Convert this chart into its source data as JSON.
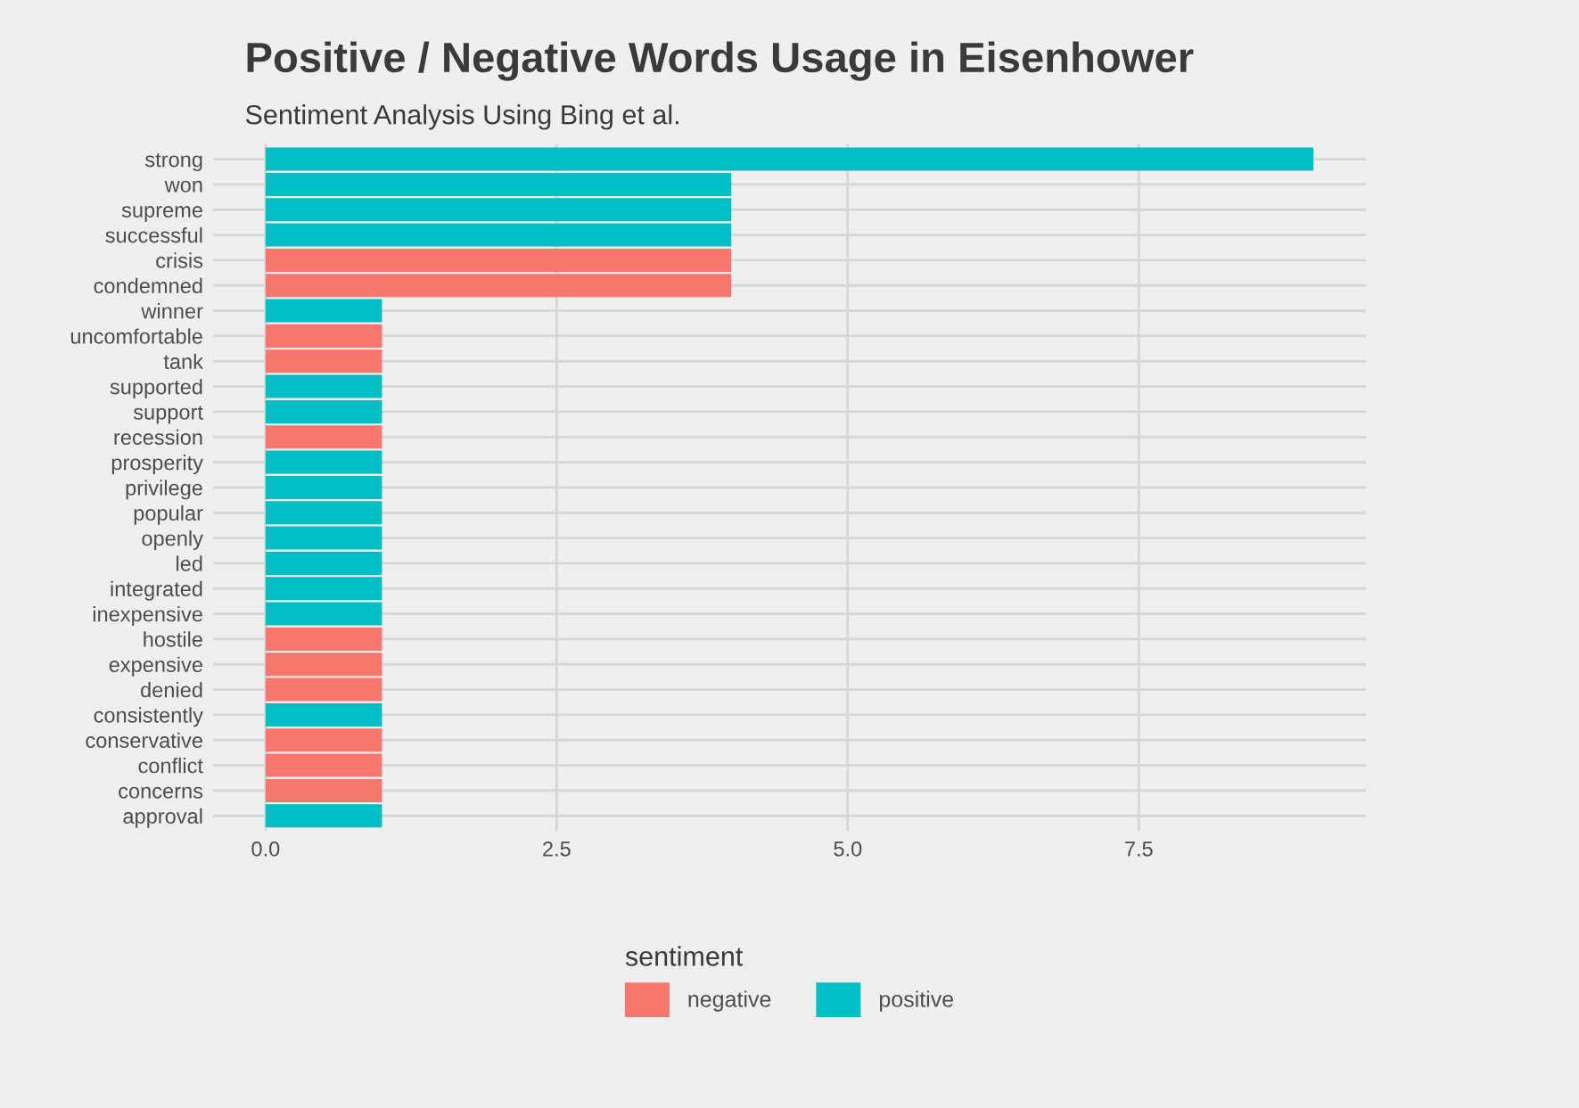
{
  "chart_data": {
    "type": "bar",
    "orientation": "horizontal",
    "title": "Positive / Negative Words Usage in Eisenhower",
    "subtitle": "Sentiment Analysis Using Bing et al.",
    "categories": [
      "strong",
      "won",
      "supreme",
      "successful",
      "crisis",
      "condemned",
      "winner",
      "uncomfortable",
      "tank",
      "supported",
      "support",
      "recession",
      "prosperity",
      "privilege",
      "popular",
      "openly",
      "led",
      "integrated",
      "inexpensive",
      "hostile",
      "expensive",
      "denied",
      "consistently",
      "conservative",
      "conflict",
      "concerns",
      "approval"
    ],
    "series": [
      {
        "name": "negative",
        "color": "#f8766d",
        "values": [
          null,
          null,
          null,
          null,
          4,
          4,
          null,
          1,
          1,
          null,
          null,
          1,
          null,
          null,
          null,
          null,
          null,
          null,
          null,
          1,
          1,
          1,
          null,
          1,
          1,
          1,
          null
        ]
      },
      {
        "name": "positive",
        "color": "#00bfc4",
        "values": [
          9,
          4,
          4,
          4,
          null,
          null,
          1,
          null,
          null,
          1,
          1,
          null,
          1,
          1,
          1,
          1,
          1,
          1,
          1,
          null,
          null,
          null,
          1,
          null,
          null,
          null,
          1
        ]
      }
    ],
    "xlim": [
      -0.45,
      9.45
    ],
    "xticks": [
      {
        "value": 0,
        "label": "0.0"
      },
      2.5,
      {
        "value": 5,
        "label": "5.0"
      },
      7.5
    ],
    "grid": true,
    "legend": "bottom",
    "legend_title": "sentiment"
  }
}
